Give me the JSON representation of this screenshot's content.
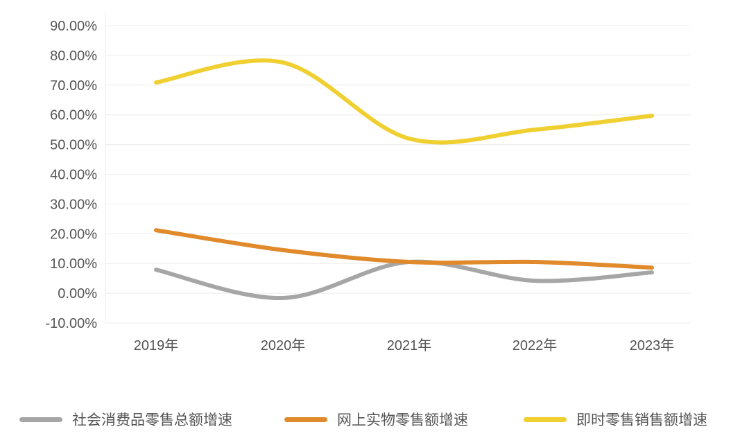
{
  "chart_data": {
    "type": "line",
    "title": "",
    "xlabel": "",
    "ylabel": "",
    "categories": [
      "2019年",
      "2020年",
      "2021年",
      "2022年",
      "2023年"
    ],
    "ylim": [
      -10,
      90
    ],
    "yticks": [
      90,
      80,
      70,
      60,
      50,
      40,
      30,
      20,
      10,
      0,
      -10
    ],
    "ytick_labels": [
      "90.00%",
      "80.00%",
      "70.00%",
      "60.00%",
      "50.00%",
      "40.00%",
      "30.00%",
      "20.00%",
      "10.00%",
      "0.00%",
      "-10.00%"
    ],
    "grid": true,
    "legend_position": "bottom",
    "series": [
      {
        "name": "社会消费品零售总额增速",
        "color": "#a6a6a6",
        "values": [
          7.9,
          -1.6,
          10.5,
          4.2,
          7.0
        ]
      },
      {
        "name": "网上实物零售额增速",
        "color": "#e08a2b",
        "values": [
          21.2,
          14.5,
          10.5,
          10.5,
          8.6
        ]
      },
      {
        "name": "即时零售销售额增速",
        "color": "#f0cf30",
        "values": [
          70.9,
          77.6,
          52.0,
          55.0,
          59.7
        ]
      }
    ]
  }
}
